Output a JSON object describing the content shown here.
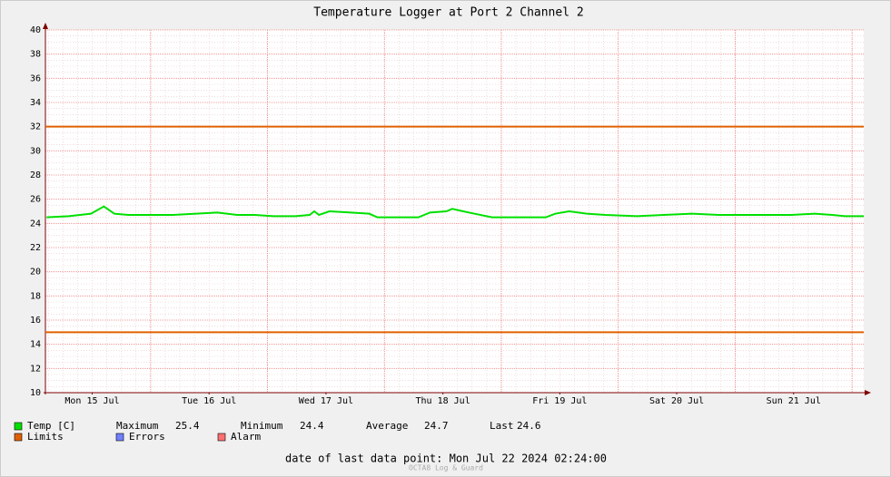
{
  "chart_data": {
    "type": "line",
    "title": "Temperature Logger at Port 2 Channel 2",
    "xlim": [
      0.1,
      7.1
    ],
    "xticks": [
      {
        "value": 0.5,
        "label": "Mon 15 Jul"
      },
      {
        "value": 1.5,
        "label": "Tue 16 Jul"
      },
      {
        "value": 2.5,
        "label": "Wed 17 Jul"
      },
      {
        "value": 3.5,
        "label": "Thu 18 Jul"
      },
      {
        "value": 4.5,
        "label": "Fri 19 Jul"
      },
      {
        "value": 5.5,
        "label": "Sat 20 Jul"
      },
      {
        "value": 6.5,
        "label": "Sun 21 Jul"
      }
    ],
    "ylim": [
      10,
      40
    ],
    "yticks": [
      10,
      12,
      14,
      16,
      18,
      20,
      22,
      24,
      26,
      28,
      30,
      32,
      34,
      36,
      38,
      40
    ],
    "grid": true,
    "x": [
      0.11,
      0.3,
      0.49,
      0.6,
      0.69,
      0.81,
      1.0,
      1.19,
      1.39,
      1.57,
      1.74,
      1.89,
      2.05,
      2.24,
      2.36,
      2.4,
      2.44,
      2.53,
      2.71,
      2.87,
      2.94,
      3.14,
      3.29,
      3.39,
      3.53,
      3.58,
      3.72,
      3.92,
      4.15,
      4.38,
      4.46,
      4.58,
      4.73,
      4.89,
      5.16,
      5.39,
      5.63,
      5.86,
      6.17,
      6.48,
      6.68,
      6.83,
      6.94,
      7.1
    ],
    "series": [
      {
        "name": "Temp [C]",
        "color": "#00e000",
        "values": [
          24.5,
          24.6,
          24.8,
          25.4,
          24.8,
          24.7,
          24.7,
          24.7,
          24.8,
          24.9,
          24.7,
          24.7,
          24.6,
          24.6,
          24.7,
          25.0,
          24.7,
          25.0,
          24.9,
          24.8,
          24.5,
          24.5,
          24.5,
          24.9,
          25.0,
          25.2,
          24.9,
          24.5,
          24.5,
          24.5,
          24.8,
          25.0,
          24.8,
          24.7,
          24.6,
          24.7,
          24.8,
          24.7,
          24.7,
          24.7,
          24.8,
          24.7,
          24.6,
          24.6
        ]
      }
    ],
    "limits": {
      "name": "Limits",
      "color": "#e06000",
      "values": [
        15,
        32
      ]
    },
    "legend_extra": [
      {
        "name": "Errors",
        "color": "#7080ff"
      },
      {
        "name": "Alarm",
        "color": "#ff7070"
      }
    ],
    "stats": [
      {
        "label": "Maximum",
        "value": 25.4
      },
      {
        "label": "Minimum",
        "value": 24.4
      },
      {
        "label": "Average",
        "value": 24.7
      },
      {
        "label": "Last",
        "value": 24.6
      }
    ],
    "footer": "date of last data point:  Mon Jul 22 2024 02:24:00",
    "watermark": "OCTA8 Log & Guard"
  }
}
